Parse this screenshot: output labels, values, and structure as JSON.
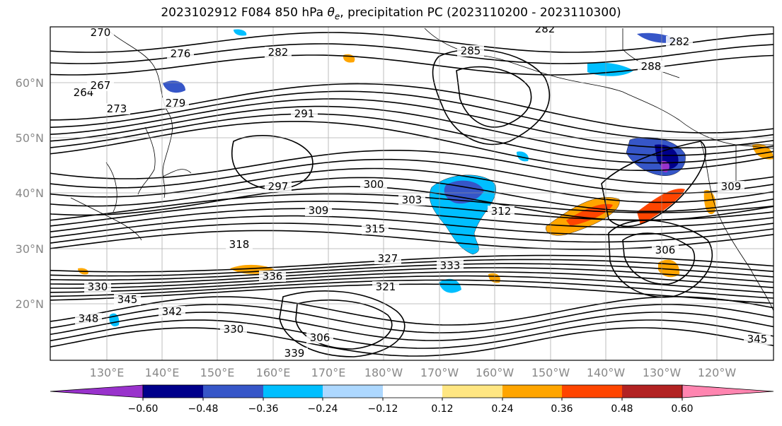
{
  "title": {
    "prefix": "2023102912 F084 850 hPa ",
    "theta_symbol": "θ",
    "theta_sub": "e",
    "suffix": ", precipitation PC (2023110200 - 2023110300)"
  },
  "chart_data": {
    "type": "contour map",
    "latitude_ticks": [
      "20°N",
      "30°N",
      "40°N",
      "50°N",
      "60°N"
    ],
    "longitude_ticks": [
      "130°E",
      "140°E",
      "150°E",
      "160°E",
      "170°E",
      "180°W",
      "170°W",
      "160°W",
      "150°W",
      "140°W",
      "130°W",
      "120°W"
    ],
    "grid": true,
    "contour_labels": [
      "270",
      "264",
      "267",
      "273",
      "276",
      "279",
      "282",
      "282",
      "285",
      "288",
      "291",
      "297",
      "300",
      "303",
      "309",
      "312",
      "315",
      "306",
      "318",
      "327",
      "330",
      "333",
      "336",
      "342",
      "345",
      "348",
      "306",
      "330",
      "345",
      "339",
      "282",
      "309",
      "321"
    ],
    "colorbar": {
      "ticks": [
        "−0.60",
        "−0.48",
        "−0.36",
        "−0.24",
        "−0.12",
        "0.12",
        "0.24",
        "0.36",
        "0.48",
        "0.60"
      ],
      "tick_values": [
        -0.6,
        -0.48,
        -0.36,
        -0.24,
        -0.12,
        0.12,
        0.24,
        0.36,
        0.48,
        0.6
      ],
      "colors": [
        "#9932CC",
        "#00008B",
        "#3656C8",
        "#00BFFF",
        "#ADD8FF",
        "#FFFFFF",
        "#FFE682",
        "#FFA500",
        "#FF4500",
        "#B22222",
        "#FF85B0"
      ],
      "extend": "both"
    }
  }
}
